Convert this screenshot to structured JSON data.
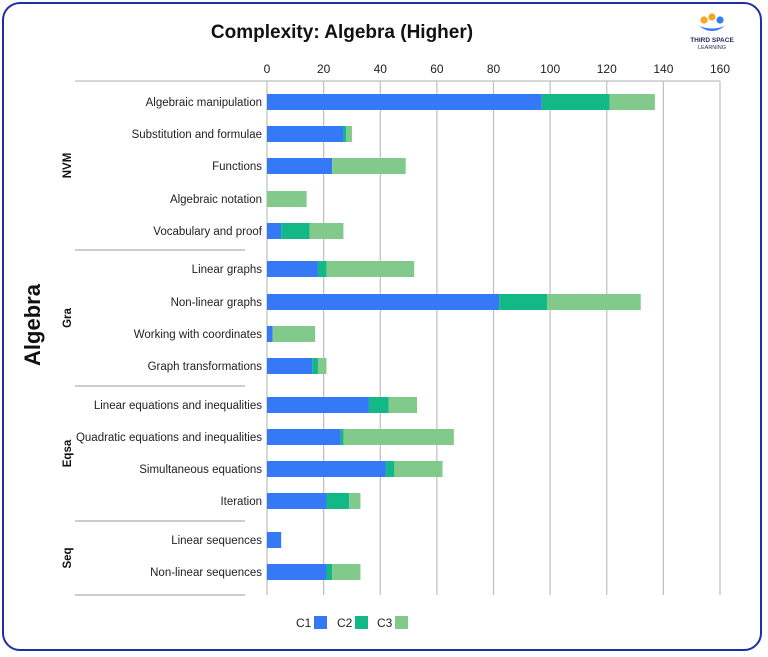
{
  "chart_data": {
    "type": "bar",
    "orientation": "horizontal",
    "stacked": true,
    "title": "Complexity: Algebra (Higher)",
    "side_title": "Algebra",
    "x_ticks": [
      0,
      20,
      40,
      60,
      80,
      100,
      120,
      140,
      160
    ],
    "xlim": [
      0,
      160
    ],
    "grid": true,
    "legend_position": "bottom",
    "groups": [
      {
        "name": "NVM",
        "categories": [
          "Algebraic manipulation",
          "Substitution and formulae",
          "Functions",
          "Algebraic notation",
          "Vocabulary and proof"
        ]
      },
      {
        "name": "Gra",
        "categories": [
          "Linear graphs",
          "Non-linear graphs",
          "Working with coordinates",
          "Graph transformations"
        ]
      },
      {
        "name": "Eqsa",
        "categories": [
          "Linear equations and inequalities",
          "Quadratic equations and inequalities",
          "Simultaneous equations",
          "Iteration"
        ]
      },
      {
        "name": "Seq",
        "categories": [
          "Linear sequences",
          "Non-linear sequences"
        ]
      }
    ],
    "series": [
      {
        "name": "C1",
        "color": "#3579f6",
        "values": [
          97,
          27,
          23,
          0,
          5,
          18,
          82,
          2,
          16,
          36,
          26,
          42,
          21,
          5,
          21
        ]
      },
      {
        "name": "C2",
        "color": "#12b886",
        "values": [
          24,
          1,
          0,
          0,
          10,
          3,
          17,
          0,
          2,
          7,
          1,
          3,
          8,
          0,
          2
        ]
      },
      {
        "name": "C3",
        "color": "#82c98c",
        "values": [
          16,
          2,
          26,
          14,
          12,
          31,
          33,
          15,
          3,
          10,
          39,
          17,
          4,
          0,
          10
        ]
      }
    ]
  },
  "logo": {
    "line1": "THIRD SPACE",
    "line2": "LEARNING"
  }
}
